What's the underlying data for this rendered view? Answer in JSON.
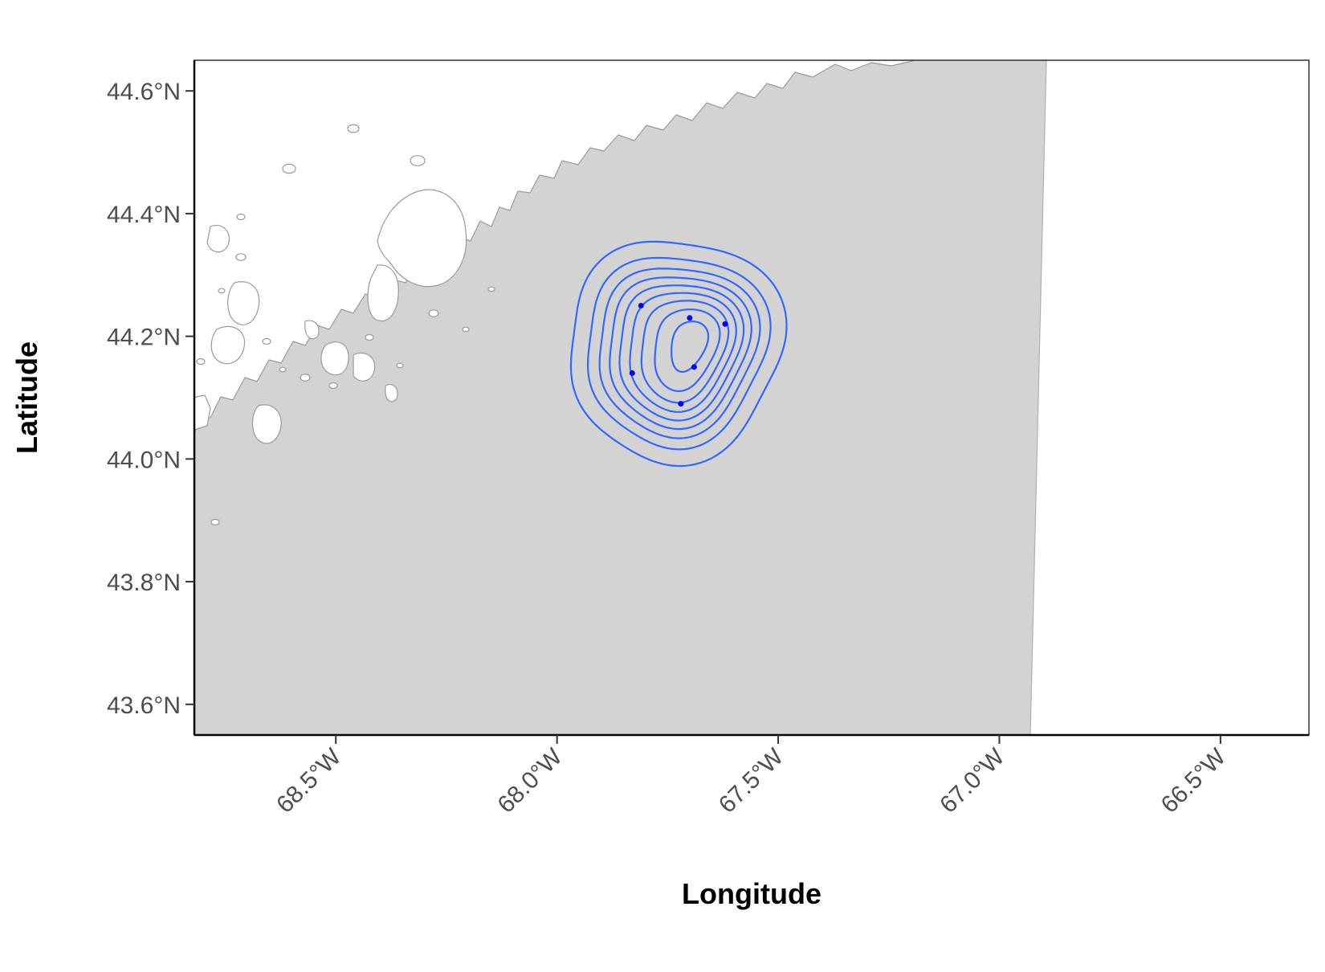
{
  "chart_data": {
    "type": "scatter",
    "subtype": "map-with-density-contours",
    "xlabel": "Longitude",
    "ylabel": "Latitude",
    "xlim": [
      -68.82,
      -66.3
    ],
    "ylim": [
      43.55,
      44.65
    ],
    "x_ticks": [
      {
        "value": -68.5,
        "label": "68.5°W"
      },
      {
        "value": -68.0,
        "label": "68.0°W"
      },
      {
        "value": -67.5,
        "label": "67.5°W"
      },
      {
        "value": -67.0,
        "label": "67.0°W"
      },
      {
        "value": -66.5,
        "label": "66.5°W"
      }
    ],
    "y_ticks": [
      {
        "value": 44.6,
        "label": "44.6°N"
      },
      {
        "value": 44.4,
        "label": "44.4°N"
      },
      {
        "value": 44.2,
        "label": "44.2°N"
      },
      {
        "value": 44.0,
        "label": "44.0°N"
      },
      {
        "value": 43.8,
        "label": "43.8°N"
      },
      {
        "value": 43.6,
        "label": "43.6°N"
      }
    ],
    "points": [
      {
        "lon": -67.81,
        "lat": 44.25
      },
      {
        "lon": -67.7,
        "lat": 44.23
      },
      {
        "lon": -67.62,
        "lat": 44.22
      },
      {
        "lon": -67.83,
        "lat": 44.14
      },
      {
        "lon": -67.69,
        "lat": 44.15
      },
      {
        "lon": -67.72,
        "lat": 44.09
      }
    ],
    "contour_levels": 9,
    "colors": {
      "ocean": "#d3d3d3",
      "land": "#ffffff",
      "coastline": "#9a9a9a",
      "contour": "#3366ff",
      "points": "#0000ff",
      "axis": "#000000"
    },
    "grid": false,
    "legend": "none"
  }
}
